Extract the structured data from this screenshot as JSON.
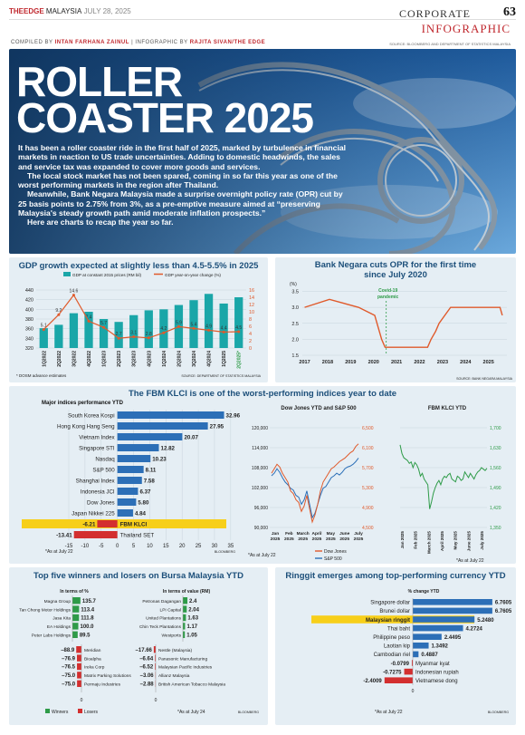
{
  "header": {
    "brand": "THEEDGE",
    "brand_sub": "MALAYSIA",
    "date": "JULY 28, 2025",
    "section": "CORPORATE",
    "page": "63",
    "tag": "INFOGRAPHIC",
    "source": "SOURCE: BLOOMBERG AND DEPARTMENT OF STATISTICS MALAYSIA",
    "compiled_label": "COMPILED BY",
    "compiled_by": "INTAN FARHANA ZAINUL",
    "infographic_label": "INFOGRAPHIC BY",
    "infographic_by": "RAJITA SIVAN/THE EDGE"
  },
  "hero": {
    "title1": "ROLLER",
    "title2": "COASTER 2025",
    "p1": "It has been a roller coaster ride in the first half of 2025, marked by turbulence in financial markets in reaction to US trade uncertainties. Adding to domestic headwinds, the sales and service tax was expanded to cover more goods and services.",
    "p2": "The local stock market has not been spared, coming in so far this year as one of the worst performing markets in the region after Thailand.",
    "p3": "Meanwhile, Bank Negara Malaysia made a surprise overnight policy rate (OPR) cut by 25 basis points to 2.75% from 3%, as a pre-emptive measure aimed at “preserving Malaysia's steady growth path amid moderate inflation prospects.”",
    "p4": "Here are charts to recap the year so far."
  },
  "chart_data": [
    {
      "id": "gdp",
      "type": "bar",
      "title": "GDP growth expected at slightly less than 4.5-5.5% in 2025",
      "legend": [
        "GDP at constant 2015 prices (RM bil)",
        "GDP year-on-year change (%)"
      ],
      "categories": [
        "1Q2022",
        "2Q2022",
        "3Q2022",
        "4Q2022",
        "1Q2023",
        "2Q2023",
        "3Q2023",
        "4Q2023",
        "1Q2024",
        "2Q2024",
        "3Q2024",
        "4Q2024",
        "1Q2025",
        "2Q2025*"
      ],
      "series": [
        {
          "name": "GDP at constant 2015 prices (RM bil)",
          "values": [
            361,
            368,
            392,
            395,
            380,
            374,
            388,
            398,
            400,
            409,
            419,
            432,
            412,
            425
          ]
        },
        {
          "name": "GDP year-on-year change (%)",
          "values": [
            5.1,
            9.2,
            14.6,
            7.4,
            5.7,
            2.7,
            3.1,
            2.8,
            4.2,
            5.9,
            5.4,
            4.9,
            4.4,
            4.5
          ]
        }
      ],
      "ylim_left": [
        320,
        440
      ],
      "yticks_left": [
        320,
        340,
        360,
        380,
        400,
        420,
        440
      ],
      "ylim_right": [
        0,
        16
      ],
      "yticks_right": [
        0,
        2,
        4,
        6,
        8,
        10,
        12,
        14,
        16
      ],
      "note": "* DOSM advance estimates",
      "source": "SOURCE: DEPARTMENT OF STATISTICS MALAYSIA"
    },
    {
      "id": "opr",
      "type": "line",
      "title": "Bank Negara cuts OPR for the first time since July 2020",
      "ylabel": "(%)",
      "x_ticks": [
        "2017",
        "2018",
        "2019",
        "2020",
        "2021",
        "2022",
        "2023",
        "2024",
        "2025"
      ],
      "yticks": [
        1.5,
        2.0,
        2.5,
        3.0,
        3.5
      ],
      "ylim": [
        1.5,
        3.6
      ],
      "annotation": "Covid-19 pandemic",
      "x": [
        2017.0,
        2018.08,
        2019.35,
        2020.05,
        2020.15,
        2020.35,
        2020.5,
        2022.35,
        2022.5,
        2022.7,
        2022.85,
        2023.35,
        2025.5,
        2025.6
      ],
      "y": [
        3.0,
        3.25,
        3.0,
        2.75,
        2.5,
        2.0,
        1.75,
        1.75,
        2.0,
        2.25,
        2.5,
        3.0,
        3.0,
        2.75
      ],
      "source": "SOURCE: BANK NEGARA MALAYSIA"
    },
    {
      "id": "indices",
      "type": "bar",
      "title": "The FBM KLCI is one of the worst-performing indices year to date",
      "subtitle": "Major indices performance YTD",
      "categories": [
        "South Korea Kospi",
        "Hong Kong Hang Seng",
        "Vietnam Index",
        "Singapore STI",
        "Nasdaq",
        "S&P 500",
        "Shanghai Index",
        "Indonesia JCI",
        "Dow Jones",
        "Japan Nikkei 225",
        "FBM KLCI",
        "Thailand SET"
      ],
      "values": [
        32.96,
        27.95,
        20.07,
        12.82,
        10.23,
        8.11,
        7.58,
        6.37,
        5.8,
        4.84,
        -6.21,
        -13.41
      ],
      "labels": [
        "32.96",
        "27.95",
        "20.07",
        "12.82",
        "10.23",
        "8.11",
        "7.58",
        "6.37",
        "5.80",
        "4.84",
        "-6.21",
        "-13.41"
      ],
      "xticks": [
        -15,
        -10,
        -5,
        0,
        5,
        10,
        15,
        20,
        25,
        30,
        35
      ],
      "xlim": [
        -15,
        37
      ],
      "note": "*As at July 22",
      "source": "BLOOMBERG"
    },
    {
      "id": "dow",
      "type": "line",
      "title": "Dow Jones YTD and S&P 500",
      "x_ticks": [
        "Jan 2025",
        "Feb 2025",
        "March 2025",
        "April 2025",
        "May 2025",
        "June 2025",
        "July 2025"
      ],
      "yticks_left": [
        "90,000",
        "96,000",
        "102,000",
        "108,000",
        "114,000",
        "120,000"
      ],
      "yticks_right": [
        "4,500",
        "4,900",
        "5,300",
        "5,700",
        "6,100",
        "6,500"
      ],
      "series": [
        {
          "name": "Dow Jones"
        },
        {
          "name": "S&P 500"
        }
      ],
      "note": "*As at July 22"
    },
    {
      "id": "klci",
      "type": "line",
      "title": "FBM KLCI YTD",
      "x_ticks": [
        "Jan 2025",
        "Feb 2025",
        "March 2025",
        "April 2025",
        "May 2025",
        "June 2025",
        "July 2025"
      ],
      "yticks": [
        "1,350",
        "1,420",
        "1,490",
        "1,560",
        "1,630",
        "1,700"
      ],
      "ylim": [
        1350,
        1700
      ],
      "x": [
        0,
        3,
        6,
        9,
        12,
        15,
        18,
        21,
        24,
        27,
        30,
        33,
        36,
        39,
        42,
        45,
        48,
        51,
        54,
        57,
        60,
        63,
        66,
        69,
        72,
        75,
        78,
        81,
        84,
        87,
        90,
        93,
        96,
        99,
        102,
        105,
        108,
        111,
        114,
        117,
        120,
        123,
        126,
        129,
        132,
        135,
        138,
        141
      ],
      "y": [
        1640,
        1610,
        1595,
        1590,
        1585,
        1575,
        1580,
        1560,
        1578,
        1570,
        1555,
        1530,
        1540,
        1520,
        1510,
        1500,
        1415,
        1440,
        1470,
        1490,
        1505,
        1515,
        1500,
        1520,
        1530,
        1525,
        1535,
        1540,
        1520,
        1515,
        1510,
        1530,
        1525,
        1515,
        1520,
        1545,
        1535,
        1525,
        1540,
        1530,
        1520,
        1535,
        1545,
        1550,
        1560,
        1555,
        1550,
        1558
      ],
      "note": "*As at July 22"
    },
    {
      "id": "bursa",
      "type": "bar",
      "title": "Top five winners and losers on Bursa Malaysia YTD",
      "percent_header": "In terms of %",
      "rm_header": "In terms of value (RM)",
      "winners_pct": [
        {
          "name": "Magna Group",
          "value": 135.7
        },
        {
          "name": "Tan Chong Motor Holdings",
          "value": 113.4
        },
        {
          "name": "Jasa Kita",
          "value": 111.8
        },
        {
          "name": "EA Holdings",
          "value": 100.0
        },
        {
          "name": "Peter Labs Holdings",
          "value": 89.5
        }
      ],
      "winners_rm": [
        {
          "name": "Petronas Dagangan",
          "value": 2.4
        },
        {
          "name": "LPI Capital",
          "value": 2.04
        },
        {
          "name": "United Plantations",
          "value": 1.63
        },
        {
          "name": "Chin Teck Plantations",
          "value": 1.17
        },
        {
          "name": "Westports",
          "value": 1.05
        }
      ],
      "losers_pct": [
        {
          "name": "Meridian",
          "value": -88.9
        },
        {
          "name": "Bioalpha",
          "value": -76.9
        },
        {
          "name": "Ireka Corp",
          "value": -76.5
        },
        {
          "name": "Matrix Parking Solutions",
          "value": -75.0
        },
        {
          "name": "Permaju Industries",
          "value": -75.0
        }
      ],
      "losers_rm": [
        {
          "name": "Nestle (Malaysia)",
          "value": -17.66
        },
        {
          "name": "Panasonic Manufacturing",
          "value": -6.64
        },
        {
          "name": "Malaysian Pacific Industries",
          "value": -6.52
        },
        {
          "name": "Allianz Malaysia",
          "value": -3.06
        },
        {
          "name": "British American Tobacco Malaysia",
          "value": -2.88
        }
      ],
      "legend": [
        "Winners",
        "Losers"
      ],
      "note": "*As at July 24",
      "source": "BLOOMBERG"
    },
    {
      "id": "ringgit",
      "type": "bar",
      "title": "Ringgit emerges among top-performing currency YTD",
      "subtitle": "% change YTD",
      "categories": [
        "Singapore dollar",
        "Brunei dollar",
        "Malaysian ringgit",
        "Thai baht",
        "Philippine peso",
        "Laotian kip",
        "Cambodian riel",
        "Myanmar kyat",
        "Indonesian rupiah",
        "Vietnamese dong"
      ],
      "values": [
        6.7605,
        6.7605,
        5.248,
        4.2724,
        2.4495,
        1.3492,
        0.4887,
        -0.0799,
        -0.7275,
        -2.4009
      ],
      "labels": [
        "6.7605",
        "6.7605",
        "5.2480",
        "4.2724",
        "2.4495",
        "1.3492",
        "0.4887",
        "-0.0799",
        "-0.7275",
        "-2.4009"
      ],
      "note": "*As at July 22",
      "source": "BLOOMBERG"
    }
  ],
  "colors": {
    "teal": "#1aa6a8",
    "orange": "#e05a2b",
    "blue": "#2c6fb7",
    "green": "#2e9b48",
    "red": "#d32f2f",
    "yellow": "#f7cf1a",
    "navy": "#1c4f7a",
    "panel": "#e5eef4"
  }
}
